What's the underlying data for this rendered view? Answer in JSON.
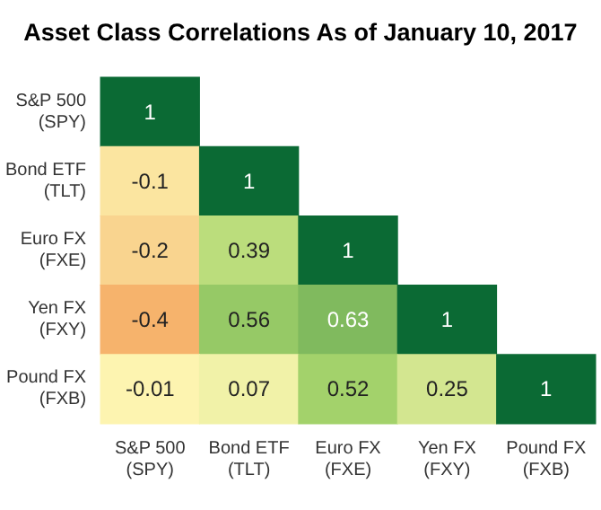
{
  "chart_data": {
    "type": "heatmap",
    "title": "Asset Class Correlations As of January 10, 2017",
    "categories": [
      "S&P 500\n(SPY)",
      "Bond ETF\n(TLT)",
      "Euro FX\n(FXE)",
      "Yen FX\n(FXY)",
      "Pound FX\n(FXB)"
    ],
    "y_categories": [
      "S&P 500\n(SPY)",
      "Bond ETF\n(TLT)",
      "Euro FX\n(FXE)",
      "Yen FX\n(FXY)",
      "Pound FX\n(FXB)"
    ],
    "cells": [
      [
        1,
        null,
        null,
        null,
        null
      ],
      [
        -0.1,
        1,
        null,
        null,
        null
      ],
      [
        -0.2,
        0.39,
        1,
        null,
        null
      ],
      [
        -0.4,
        0.56,
        0.63,
        1,
        null
      ],
      [
        -0.01,
        0.07,
        0.52,
        0.25,
        1
      ]
    ],
    "data_labels": true
  }
}
